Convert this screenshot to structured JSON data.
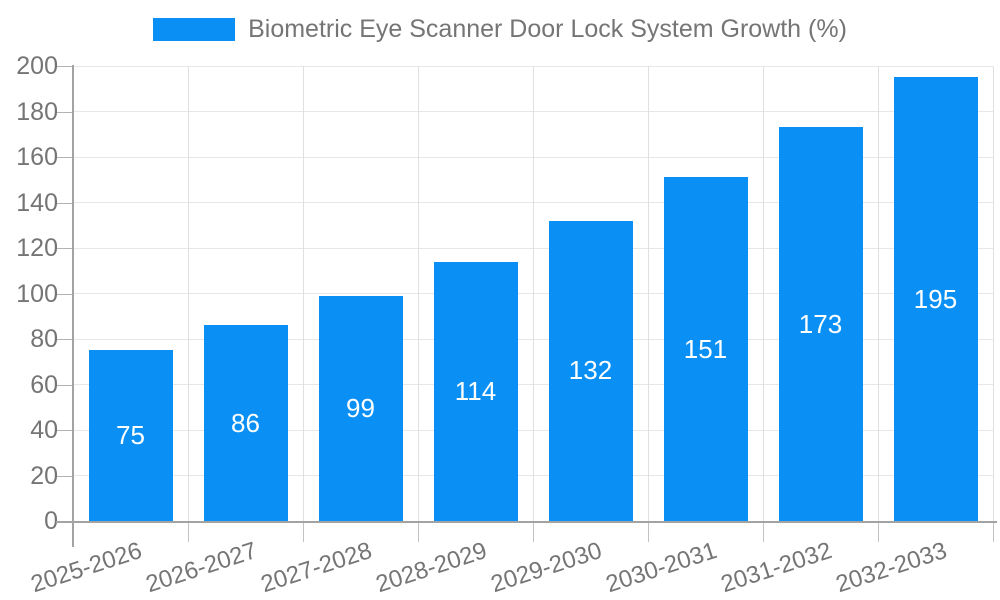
{
  "chart_data": {
    "type": "bar",
    "title": "Biometric Eye Scanner Door Lock System Growth (%)",
    "legend_label": "Biometric Eye Scanner Door Lock System Growth (%)",
    "legend_position": "top",
    "categories": [
      "2025-2026",
      "2026-2027",
      "2027-2028",
      "2028-2029",
      "2029-2030",
      "2030-2031",
      "2031-2032",
      "2032-2033"
    ],
    "values": [
      75,
      86,
      99,
      114,
      132,
      151,
      173,
      195
    ],
    "xlabel": "",
    "ylabel": "",
    "ylim": [
      0,
      200
    ],
    "yticks": [
      0,
      20,
      40,
      60,
      80,
      100,
      120,
      140,
      160,
      180,
      200
    ],
    "grid": true,
    "value_labels": "centered-in-bar",
    "bar_color": "#0a90f5",
    "value_label_color": "#ffffff",
    "axis_text_color": "#757575",
    "gridline_color": "#e7e7e7",
    "axis_line_color": "#a3a3a3"
  }
}
